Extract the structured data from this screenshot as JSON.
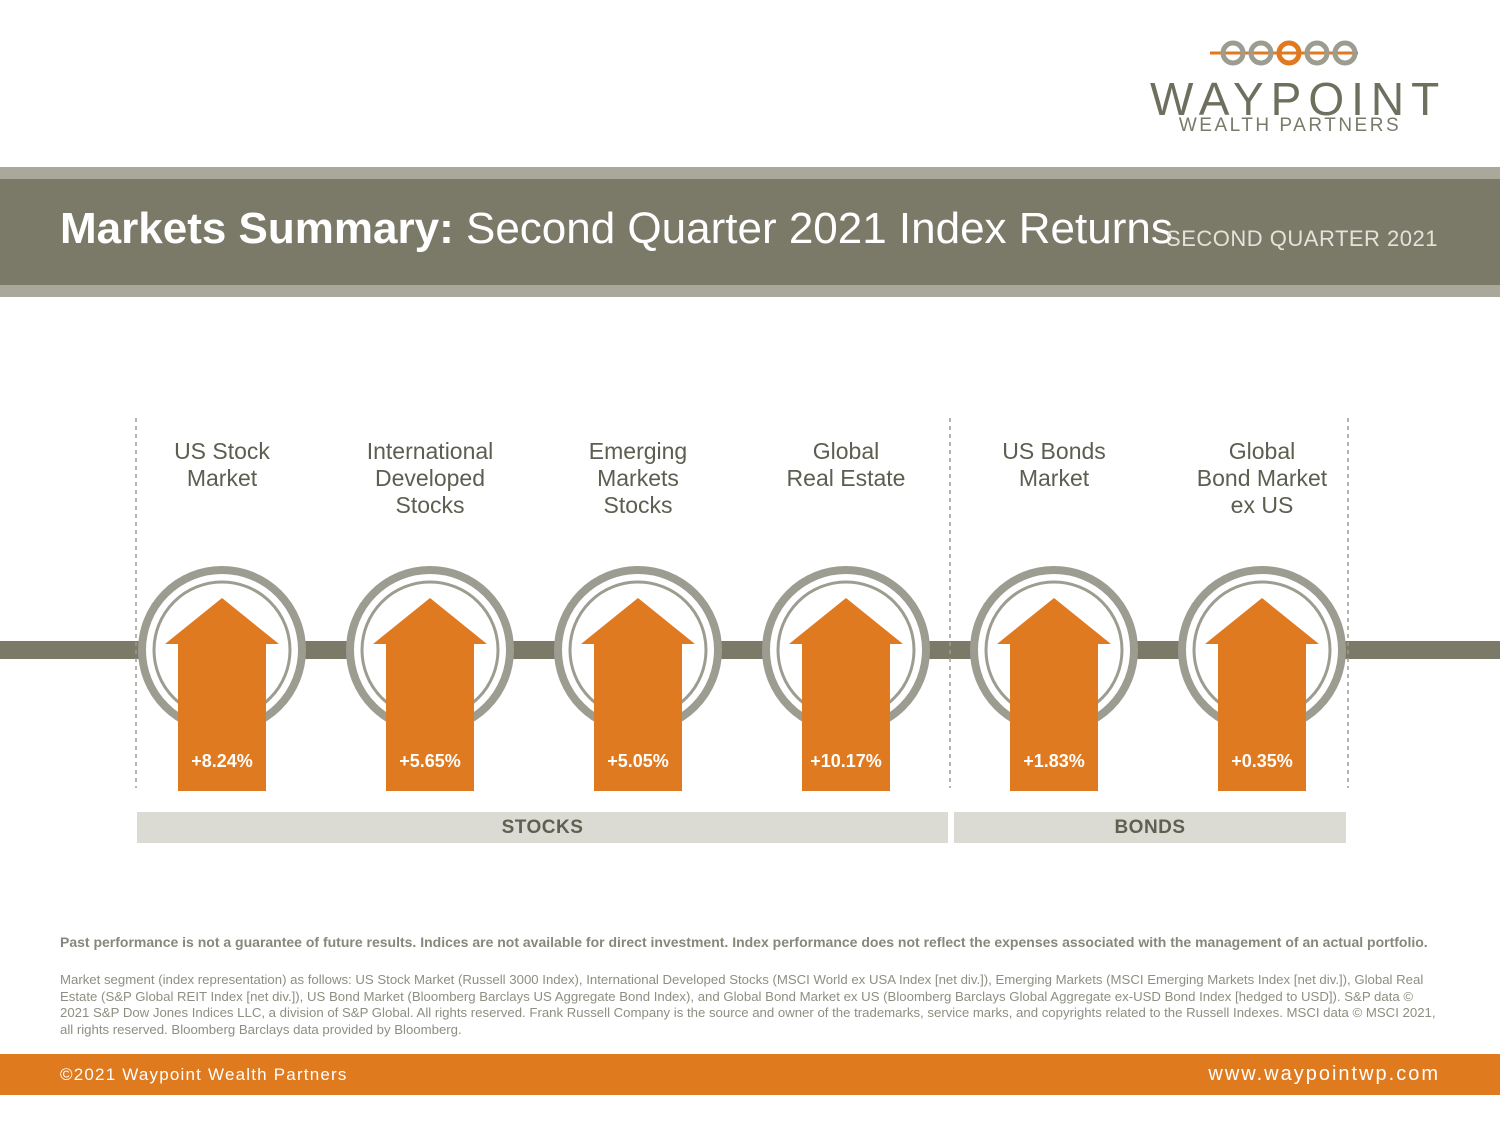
{
  "logo": {
    "name": "WAYPOINT",
    "subtitle": "WEALTH PARTNERS",
    "accent_color": "#e07a20",
    "ring_color": "#9d9c90"
  },
  "header": {
    "title_bold": "Markets Summary:",
    "title_light": "Second Quarter 2021 Index Returns",
    "quarter": "SECOND QUARTER 2021"
  },
  "chart_data": {
    "type": "bar",
    "categories": [
      "US Stock Market",
      "International Developed Stocks",
      "Emerging Markets Stocks",
      "Global Real Estate",
      "US Bonds Market",
      "Global Bond Market ex US"
    ],
    "category_lines": [
      [
        "US Stock",
        "Market"
      ],
      [
        "International",
        "Developed",
        "Stocks"
      ],
      [
        "Emerging",
        "Markets",
        "Stocks"
      ],
      [
        "Global",
        "Real Estate"
      ],
      [
        "US Bonds",
        "Market"
      ],
      [
        "Global",
        "Bond Market",
        "ex US"
      ]
    ],
    "values": [
      8.24,
      5.65,
      5.05,
      10.17,
      1.83,
      0.35
    ],
    "value_labels": [
      "+8.24%",
      "+5.65%",
      "+5.05%",
      "+10.17%",
      "+1.83%",
      "+0.35%"
    ],
    "groups": [
      {
        "label": "STOCKS",
        "categories": [
          0,
          1,
          2,
          3
        ]
      },
      {
        "label": "BONDS",
        "categories": [
          4,
          5
        ]
      }
    ],
    "colors": {
      "arrow": "#e07a20",
      "ring": "#9d9c90",
      "line": "#7b7a68",
      "group_bar": "#dcdbd3"
    }
  },
  "footnotes": {
    "disclaimer": "Past performance is not a guarantee of future results. Indices are not available for direct investment. Index performance does not reflect the expenses associated with the management of an actual portfolio.",
    "details": "Market segment (index representation) as follows: US Stock Market (Russell 3000 Index), International Developed Stocks (MSCI World ex USA Index [net div.]), Emerging Markets (MSCI Emerging Markets Index [net div.]), Global Real Estate (S&P Global REIT Index [net div.]), US Bond Market (Bloomberg Barclays US Aggregate Bond Index), and Global Bond Market ex US (Bloomberg Barclays Global Aggregate ex-USD Bond Index [hedged to USD]). S&P data © 2021 S&P Dow Jones Indices LLC, a division of S&P Global. All rights reserved. Frank Russell Company is the source and owner of the trademarks, service marks, and copyrights related to the Russell Indexes. MSCI data © MSCI 2021, all rights reserved. Bloomberg Barclays data provided by Bloomberg."
  },
  "footer": {
    "copyright": "©2021 Waypoint Wealth Partners",
    "website": "www.waypointwp.com",
    "color": "#df7a1f"
  }
}
